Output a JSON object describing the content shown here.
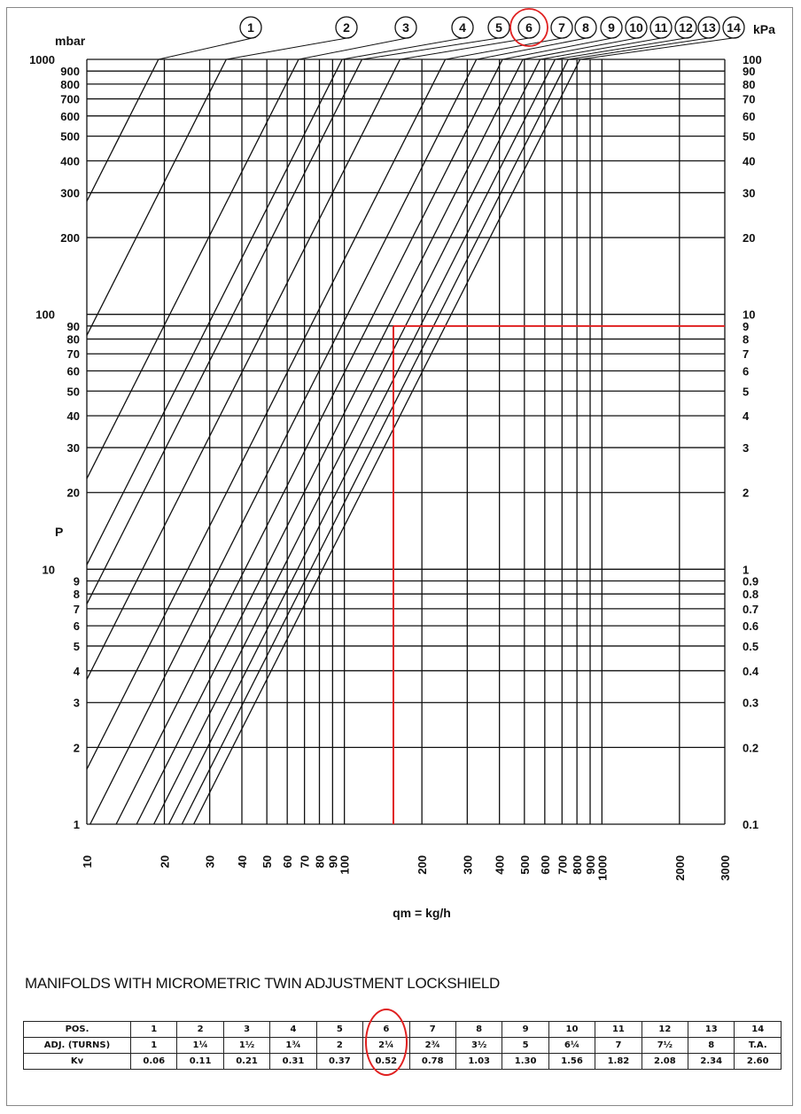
{
  "chart_data": {
    "type": "line",
    "xlabel": "qm = kg/h",
    "ylabel": "P",
    "y_unit_left": "mbar",
    "y_unit_right": "kPa",
    "x_scale": "log",
    "y_scale": "log",
    "xlim": [
      10,
      3000
    ],
    "ylim": [
      1,
      1000
    ],
    "grid": true,
    "x_ticks": [
      "10",
      "20",
      "30",
      "40",
      "50",
      "60",
      "70",
      "80",
      "90",
      "100",
      "200",
      "300",
      "400",
      "500",
      "600",
      "700",
      "800",
      "900",
      "1000",
      "2000",
      "3000"
    ],
    "x_tick_values": [
      10,
      20,
      30,
      40,
      50,
      60,
      70,
      80,
      90,
      100,
      200,
      300,
      400,
      500,
      600,
      700,
      800,
      900,
      1000,
      2000,
      3000
    ],
    "y_ticks_left": [
      "1",
      "2",
      "3",
      "4",
      "5",
      "6",
      "7",
      "8",
      "9",
      "10",
      "20",
      "30",
      "40",
      "50",
      "60",
      "70",
      "80",
      "90",
      "100",
      "200",
      "300",
      "400",
      "500",
      "600",
      "700",
      "800",
      "900",
      "1000"
    ],
    "y_tick_values": [
      1,
      2,
      3,
      4,
      5,
      6,
      7,
      8,
      9,
      10,
      20,
      30,
      40,
      50,
      60,
      70,
      80,
      90,
      100,
      200,
      300,
      400,
      500,
      600,
      700,
      800,
      900,
      1000
    ],
    "y_ticks_right": [
      "0.1",
      "0.2",
      "0.3",
      "0.4",
      "0.5",
      "0.6",
      "0.7",
      "0.8",
      "0.9",
      "1",
      "2",
      "3",
      "4",
      "5",
      "6",
      "7",
      "8",
      "9",
      "10",
      "20",
      "30",
      "40",
      "50",
      "60",
      "70",
      "80",
      "90",
      "100"
    ],
    "series": [
      {
        "name": "1",
        "kv": 0.06
      },
      {
        "name": "2",
        "kv": 0.11
      },
      {
        "name": "3",
        "kv": 0.21
      },
      {
        "name": "4",
        "kv": 0.31
      },
      {
        "name": "5",
        "kv": 0.37
      },
      {
        "name": "6",
        "kv": 0.52
      },
      {
        "name": "7",
        "kv": 0.78
      },
      {
        "name": "8",
        "kv": 1.03
      },
      {
        "name": "9",
        "kv": 1.3
      },
      {
        "name": "10",
        "kv": 1.56
      },
      {
        "name": "11",
        "kv": 1.82
      },
      {
        "name": "12",
        "kv": 2.08
      },
      {
        "name": "13",
        "kv": 2.34
      },
      {
        "name": "14",
        "kv": 2.6
      }
    ],
    "highlight": {
      "series": "6",
      "x": 155,
      "y": 90,
      "color": "#e02020"
    }
  },
  "table": {
    "title": "MANIFOLDS WITH MICROMETRIC TWIN ADJUSTMENT LOCKSHIELD",
    "rows": [
      [
        "POS.",
        "1",
        "2",
        "3",
        "4",
        "5",
        "6",
        "7",
        "8",
        "9",
        "10",
        "11",
        "12",
        "13",
        "14"
      ],
      [
        "ADJ. (TURNS)",
        "1",
        "1¼",
        "1½",
        "1¾",
        "2",
        "2¼",
        "2¾",
        "3½",
        "5",
        "6¼",
        "7",
        "7½",
        "8",
        "T.A."
      ],
      [
        "Kv",
        "0.06",
        "0.11",
        "0.21",
        "0.31",
        "0.37",
        "0.52",
        "0.78",
        "1.03",
        "1.30",
        "1.56",
        "1.82",
        "2.08",
        "2.34",
        "2.60"
      ]
    ],
    "highlight_column": 6
  },
  "colors": {
    "highlight": "#e02020",
    "grid": "#111111"
  }
}
